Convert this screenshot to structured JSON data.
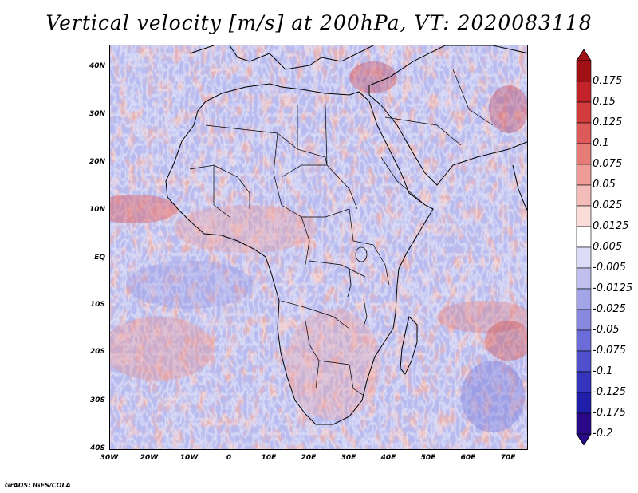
{
  "title": "Vertical velocity [m/s] at 200hPa, VT: 2020083118",
  "footer": "GrADS: IGES/COLA",
  "lat_labels": [
    "40N",
    "30N",
    "20N",
    "10N",
    "EQ",
    "10S",
    "20S",
    "30S",
    "40S"
  ],
  "lon_labels": [
    "30W",
    "20W",
    "10W",
    "0",
    "10E",
    "20E",
    "30E",
    "40E",
    "50E",
    "60E",
    "70E"
  ],
  "colorbar": {
    "labels": [
      "0.175",
      "0.15",
      "0.125",
      "0.1",
      "0.075",
      "0.05",
      "0.025",
      "0.0125",
      "0.005",
      "-0.005",
      "-0.0125",
      "-0.025",
      "-0.05",
      "-0.075",
      "-0.1",
      "-0.125",
      "-0.175",
      "-0.2"
    ],
    "colors": [
      "#a01014",
      "#c4222a",
      "#d23c3c",
      "#dd5a5a",
      "#e57c78",
      "#ee9c98",
      "#f4bcb8",
      "#fadcd8",
      "#ffffff",
      "#dcdcf6",
      "#c0c0ee",
      "#a4a4e8",
      "#8888e0",
      "#6c6cd8",
      "#5050cc",
      "#3434bc",
      "#1e1ea8",
      "#2b0a8a"
    ]
  }
}
